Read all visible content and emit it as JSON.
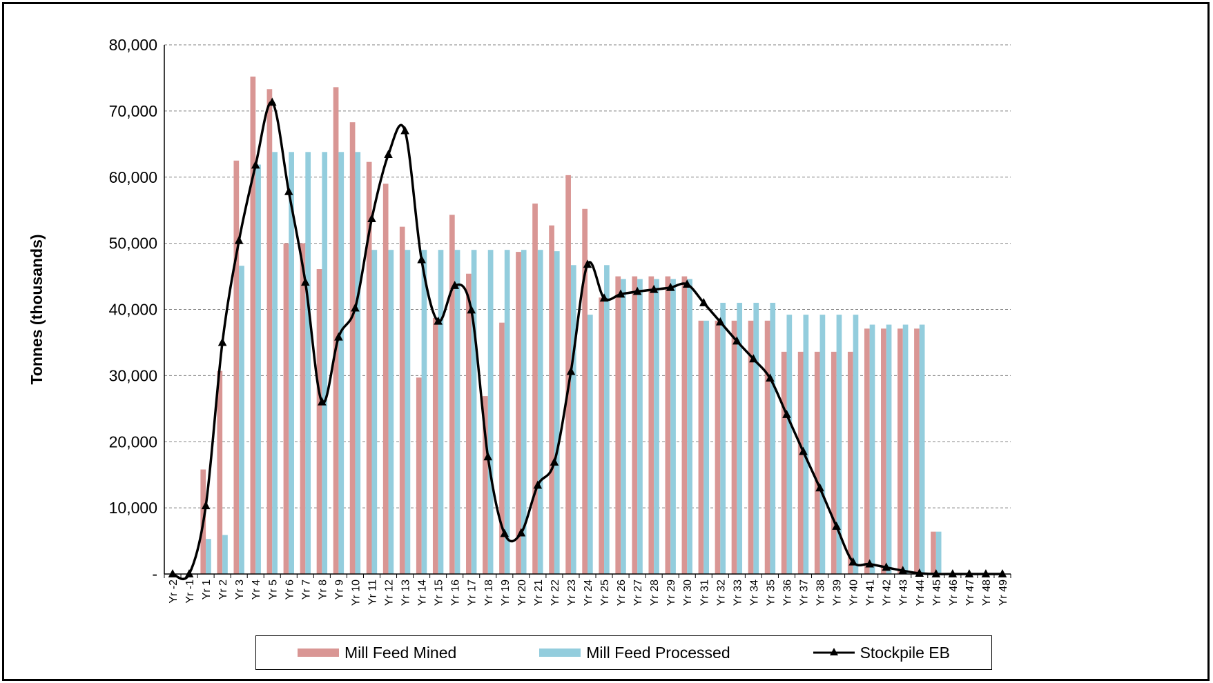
{
  "colors": {
    "mined": "#D99694",
    "processed": "#93CDDD",
    "stockpile": "#000000",
    "grid": "#808080"
  },
  "chart_data": {
    "type": "bar",
    "title": "",
    "xlabel": "",
    "ylabel": "Tonnes (thousands)",
    "ylim": [
      0,
      80000
    ],
    "yticks": [
      "-",
      "10,000",
      "20,000",
      "30,000",
      "40,000",
      "50,000",
      "60,000",
      "70,000",
      "80,000"
    ],
    "grid": true,
    "legend_position": "bottom",
    "categories": [
      "Yr -2",
      "Yr -1",
      "Yr 1",
      "Yr 2",
      "Yr 3",
      "Yr 4",
      "Yr 5",
      "Yr 6",
      "Yr 7",
      "Yr 8",
      "Yr 9",
      "Yr 10",
      "Yr 11",
      "Yr 12",
      "Yr 13",
      "Yr 14",
      "Yr 15",
      "Yr 16",
      "Yr 17",
      "Yr 18",
      "Yr 19",
      "Yr 20",
      "Yr 21",
      "Yr 22",
      "Yr 23",
      "Yr 24",
      "Yr 25",
      "Yr 26",
      "Yr 27",
      "Yr 28",
      "Yr 29",
      "Yr 30",
      "Yr 31",
      "Yr 32",
      "Yr 33",
      "Yr 34",
      "Yr 35",
      "Yr 36",
      "Yr 37",
      "Yr 38",
      "Yr 39",
      "Yr 40",
      "Yr 41",
      "Yr 42",
      "Yr 43",
      "Yr 44",
      "Yr 45",
      "Yr 46",
      "Yr 47",
      "Yr 48",
      "Yr 49"
    ],
    "series": [
      {
        "name": "Mill Feed Mined",
        "type": "bar",
        "values": [
          0,
          0,
          15800,
          30700,
          62500,
          75200,
          73300,
          50000,
          50000,
          46100,
          73600,
          68300,
          62300,
          59000,
          52500,
          29700,
          38700,
          54300,
          45400,
          26900,
          38000,
          48700,
          56000,
          52700,
          60300,
          55200,
          41800,
          45000,
          45000,
          45000,
          45000,
          45000,
          38300,
          38300,
          38300,
          38300,
          38300,
          33600,
          33600,
          33600,
          33600,
          33600,
          37100,
          37100,
          37100,
          37100,
          6400,
          0,
          0,
          0,
          0
        ]
      },
      {
        "name": "Mill Feed Processed",
        "type": "bar",
        "values": [
          0,
          0,
          5300,
          5900,
          46600,
          61900,
          63800,
          63800,
          63800,
          63800,
          63800,
          63800,
          49000,
          49000,
          49000,
          49000,
          49000,
          49000,
          49000,
          49000,
          49000,
          49000,
          49000,
          48800,
          46700,
          39200,
          46700,
          44600,
          44600,
          44600,
          44600,
          44600,
          38300,
          41000,
          41000,
          41000,
          41000,
          39200,
          39200,
          39200,
          39200,
          39200,
          37700,
          37700,
          37700,
          37700,
          6400,
          0,
          0,
          0,
          0
        ]
      },
      {
        "name": "Stockpile EB",
        "type": "line",
        "values": [
          0,
          0,
          10300,
          35000,
          50400,
          61800,
          71300,
          57800,
          44100,
          26000,
          35800,
          40200,
          53700,
          63400,
          67000,
          47500,
          38200,
          43600,
          39900,
          17700,
          6100,
          6200,
          13400,
          16900,
          30600,
          46800,
          41700,
          42300,
          42700,
          43000,
          43300,
          43800,
          41000,
          38100,
          35200,
          32500,
          29600,
          24100,
          18500,
          13000,
          7200,
          1800,
          1500,
          1000,
          500,
          100,
          0,
          0,
          0,
          0,
          0
        ]
      }
    ]
  }
}
